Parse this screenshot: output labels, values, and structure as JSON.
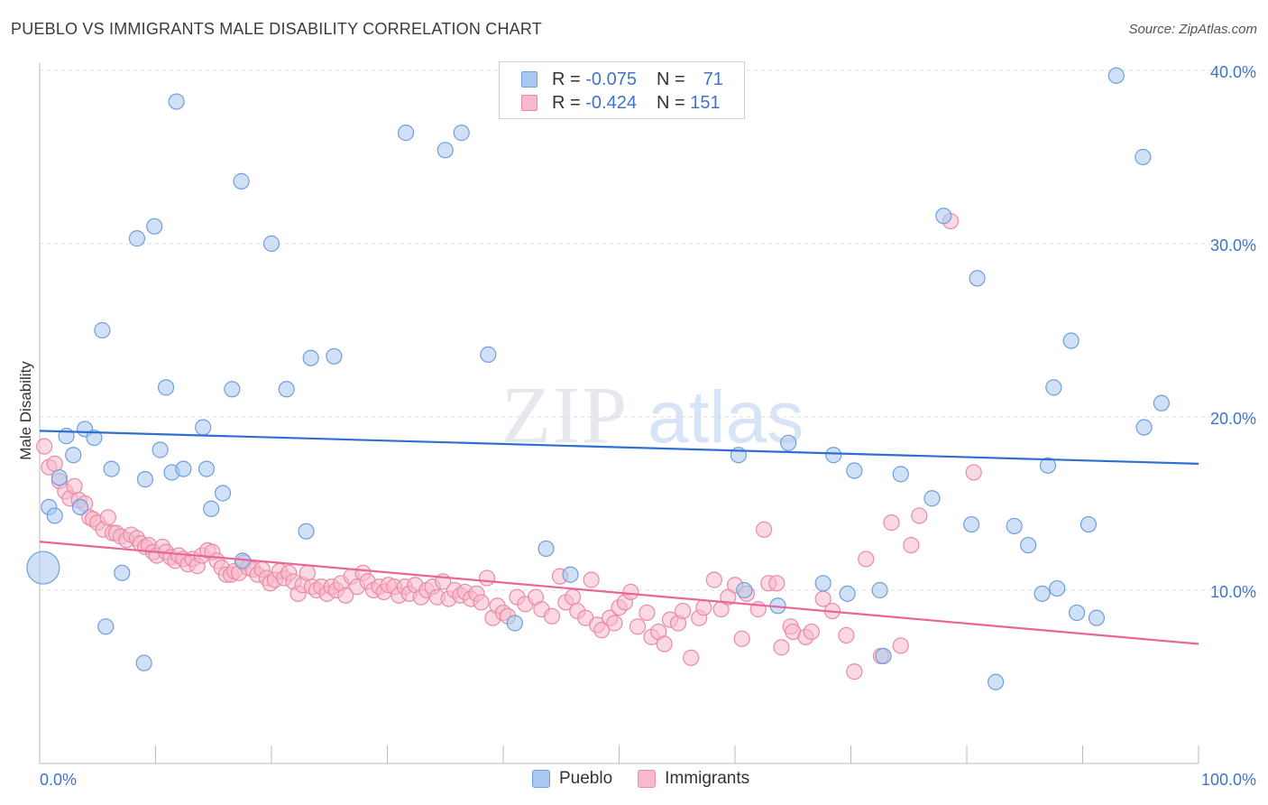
{
  "title": "PUEBLO VS IMMIGRANTS MALE DISABILITY CORRELATION CHART",
  "source": "Source: ZipAtlas.com",
  "watermark": {
    "zip": "ZIP",
    "atlas": "atlas"
  },
  "legend": {
    "rows": [
      {
        "r_label": "R =",
        "r_value": "-0.075",
        "n_label": "N =",
        "n_value": "71"
      },
      {
        "r_label": "R =",
        "r_value": "-0.424",
        "n_label": "N =",
        "n_value": "151"
      }
    ]
  },
  "bottom_legend": {
    "pueblo": "Pueblo",
    "immigrants": "Immigrants"
  },
  "colors": {
    "pueblo_fill": "#a9c8f0",
    "pueblo_stroke": "#6f9fdc",
    "pueblo_line": "#2f6fd0",
    "immigrants_fill": "#f7b9cb",
    "immigrants_stroke": "#ea8aa8",
    "immigrants_line": "#e8659a",
    "tick_text": "#3f74c9",
    "grid": "#dddddd"
  },
  "chart_data": {
    "type": "scatter",
    "title": "PUEBLO VS IMMIGRANTS MALE DISABILITY CORRELATION CHART",
    "xlabel": "",
    "ylabel": "Male Disability",
    "xlim": [
      0,
      100
    ],
    "ylim": [
      0,
      40
    ],
    "x_tick_labels": [
      "0.0%",
      "100.0%"
    ],
    "y_ticks": [
      10,
      20,
      30,
      40
    ],
    "y_tick_labels": [
      "10.0%",
      "20.0%",
      "30.0%",
      "40.0%"
    ],
    "grid": true,
    "legend_position": "top-center",
    "series": [
      {
        "name": "Pueblo",
        "r": -0.075,
        "n": 71,
        "trend": {
          "x": [
            0,
            100
          ],
          "y": [
            19.2,
            17.3
          ]
        },
        "points": [
          [
            0.3,
            11.3,
            "big"
          ],
          [
            0.8,
            14.8
          ],
          [
            1.3,
            14.3
          ],
          [
            1.7,
            16.5
          ],
          [
            2.3,
            18.9
          ],
          [
            2.9,
            17.8
          ],
          [
            3.5,
            14.8
          ],
          [
            3.9,
            19.3
          ],
          [
            4.7,
            18.8
          ],
          [
            5.4,
            25.0
          ],
          [
            6.2,
            17.0
          ],
          [
            7.1,
            11.0
          ],
          [
            5.7,
            7.9
          ],
          [
            8.4,
            30.3
          ],
          [
            9.1,
            16.4
          ],
          [
            9.0,
            5.8
          ],
          [
            9.9,
            31.0
          ],
          [
            10.4,
            18.1
          ],
          [
            10.9,
            21.7
          ],
          [
            11.4,
            16.8
          ],
          [
            11.8,
            38.2
          ],
          [
            12.4,
            17.0
          ],
          [
            14.1,
            19.4
          ],
          [
            14.4,
            17.0
          ],
          [
            14.8,
            14.7
          ],
          [
            15.8,
            15.6
          ],
          [
            16.6,
            21.6
          ],
          [
            17.4,
            33.6
          ],
          [
            17.5,
            11.7
          ],
          [
            20.0,
            30.0
          ],
          [
            21.3,
            21.6
          ],
          [
            23.0,
            13.4
          ],
          [
            23.4,
            23.4
          ],
          [
            25.4,
            23.5
          ],
          [
            31.6,
            36.4
          ],
          [
            35.0,
            35.4
          ],
          [
            36.4,
            36.4
          ],
          [
            38.7,
            23.6
          ],
          [
            43.7,
            12.4
          ],
          [
            45.8,
            10.9
          ],
          [
            41.0,
            8.1
          ],
          [
            60.3,
            17.8
          ],
          [
            60.8,
            10.0
          ],
          [
            63.7,
            9.1
          ],
          [
            64.6,
            18.5
          ],
          [
            67.6,
            10.4
          ],
          [
            68.5,
            17.8
          ],
          [
            69.7,
            9.8
          ],
          [
            70.3,
            16.9
          ],
          [
            72.5,
            10.0
          ],
          [
            72.8,
            6.2
          ],
          [
            74.3,
            16.7
          ],
          [
            77.0,
            15.3
          ],
          [
            78.0,
            31.6
          ],
          [
            80.4,
            13.8
          ],
          [
            80.9,
            28.0
          ],
          [
            84.1,
            13.7
          ],
          [
            85.3,
            12.6
          ],
          [
            87.0,
            17.2
          ],
          [
            87.8,
            10.1
          ],
          [
            87.5,
            21.7
          ],
          [
            89.0,
            24.4
          ],
          [
            89.5,
            8.7
          ],
          [
            90.5,
            13.8
          ],
          [
            91.2,
            8.4
          ],
          [
            92.9,
            39.7
          ],
          [
            95.2,
            35.0
          ],
          [
            95.3,
            19.4
          ],
          [
            96.8,
            20.8
          ],
          [
            82.5,
            4.7
          ],
          [
            86.5,
            9.8
          ]
        ]
      },
      {
        "name": "Immigrants",
        "r": -0.424,
        "n": 151,
        "trend": {
          "x": [
            0,
            100
          ],
          "y": [
            12.8,
            6.9
          ]
        },
        "points": [
          [
            0.4,
            18.3
          ],
          [
            0.8,
            17.1
          ],
          [
            1.3,
            17.3
          ],
          [
            1.7,
            16.3
          ],
          [
            2.2,
            15.7
          ],
          [
            2.6,
            15.3
          ],
          [
            3.0,
            16.0
          ],
          [
            3.4,
            15.2
          ],
          [
            3.9,
            15.0
          ],
          [
            4.3,
            14.2
          ],
          [
            4.6,
            14.1
          ],
          [
            5.0,
            13.9
          ],
          [
            5.5,
            13.5
          ],
          [
            5.9,
            14.2
          ],
          [
            6.3,
            13.3
          ],
          [
            6.6,
            13.3
          ],
          [
            7.0,
            13.1
          ],
          [
            7.5,
            12.9
          ],
          [
            7.9,
            13.2
          ],
          [
            8.4,
            13.0
          ],
          [
            8.7,
            12.7
          ],
          [
            9.1,
            12.5
          ],
          [
            9.4,
            12.6
          ],
          [
            9.8,
            12.2
          ],
          [
            10.1,
            12.0
          ],
          [
            10.6,
            12.5
          ],
          [
            10.9,
            12.2
          ],
          [
            11.3,
            11.9
          ],
          [
            11.7,
            11.7
          ],
          [
            12.0,
            12.0
          ],
          [
            12.4,
            11.8
          ],
          [
            12.8,
            11.5
          ],
          [
            13.2,
            11.8
          ],
          [
            13.6,
            11.4
          ],
          [
            14.0,
            12.0
          ],
          [
            14.5,
            12.3
          ],
          [
            14.9,
            12.2
          ],
          [
            15.3,
            11.7
          ],
          [
            15.7,
            11.3
          ],
          [
            16.1,
            10.9
          ],
          [
            16.5,
            10.9
          ],
          [
            16.8,
            11.1
          ],
          [
            17.2,
            11.0
          ],
          [
            17.6,
            11.6
          ],
          [
            18.0,
            11.3
          ],
          [
            18.4,
            11.2
          ],
          [
            18.8,
            10.9
          ],
          [
            19.2,
            11.2
          ],
          [
            19.6,
            10.7
          ],
          [
            19.9,
            10.4
          ],
          [
            20.3,
            10.6
          ],
          [
            20.7,
            11.1
          ],
          [
            21.1,
            10.7
          ],
          [
            21.5,
            11.0
          ],
          [
            21.9,
            10.5
          ],
          [
            22.3,
            9.8
          ],
          [
            22.7,
            10.3
          ],
          [
            23.1,
            11.0
          ],
          [
            23.5,
            10.2
          ],
          [
            23.9,
            10.0
          ],
          [
            24.3,
            10.2
          ],
          [
            24.8,
            9.8
          ],
          [
            25.2,
            10.2
          ],
          [
            25.6,
            10.0
          ],
          [
            26.0,
            10.4
          ],
          [
            26.4,
            9.7
          ],
          [
            26.9,
            10.8
          ],
          [
            27.4,
            10.2
          ],
          [
            27.9,
            11.0
          ],
          [
            28.3,
            10.5
          ],
          [
            28.8,
            10.0
          ],
          [
            29.3,
            10.2
          ],
          [
            29.7,
            9.9
          ],
          [
            30.1,
            10.3
          ],
          [
            30.6,
            10.2
          ],
          [
            31.0,
            9.7
          ],
          [
            31.5,
            10.2
          ],
          [
            31.9,
            9.8
          ],
          [
            32.4,
            10.3
          ],
          [
            32.9,
            9.6
          ],
          [
            33.4,
            10.0
          ],
          [
            33.9,
            10.2
          ],
          [
            34.3,
            9.6
          ],
          [
            34.8,
            10.5
          ],
          [
            35.3,
            9.5
          ],
          [
            35.8,
            10.0
          ],
          [
            36.3,
            9.7
          ],
          [
            36.7,
            9.9
          ],
          [
            37.2,
            9.5
          ],
          [
            37.7,
            9.8
          ],
          [
            38.1,
            9.3
          ],
          [
            38.6,
            10.7
          ],
          [
            39.1,
            8.4
          ],
          [
            39.5,
            9.1
          ],
          [
            40.0,
            8.7
          ],
          [
            40.4,
            8.5
          ],
          [
            41.2,
            9.6
          ],
          [
            41.9,
            9.2
          ],
          [
            42.8,
            9.6
          ],
          [
            43.3,
            8.9
          ],
          [
            44.2,
            8.5
          ],
          [
            44.9,
            10.8
          ],
          [
            45.4,
            9.3
          ],
          [
            46.0,
            9.6
          ],
          [
            46.4,
            8.8
          ],
          [
            47.1,
            8.4
          ],
          [
            47.6,
            10.6
          ],
          [
            48.1,
            8.0
          ],
          [
            48.5,
            7.7
          ],
          [
            49.2,
            8.4
          ],
          [
            49.6,
            8.1
          ],
          [
            50.0,
            9.0
          ],
          [
            50.5,
            9.3
          ],
          [
            51.0,
            9.9
          ],
          [
            51.6,
            7.9
          ],
          [
            52.4,
            8.7
          ],
          [
            52.8,
            7.3
          ],
          [
            53.4,
            7.6
          ],
          [
            53.9,
            6.9
          ],
          [
            54.4,
            8.3
          ],
          [
            55.1,
            8.1
          ],
          [
            55.5,
            8.8
          ],
          [
            56.2,
            6.1
          ],
          [
            56.9,
            8.4
          ],
          [
            57.3,
            9.0
          ],
          [
            58.2,
            10.6
          ],
          [
            58.8,
            8.9
          ],
          [
            59.4,
            9.6
          ],
          [
            60.0,
            10.3
          ],
          [
            60.6,
            7.2
          ],
          [
            61.0,
            9.8
          ],
          [
            62.0,
            8.9
          ],
          [
            62.5,
            13.5
          ],
          [
            62.9,
            10.4
          ],
          [
            63.6,
            10.4
          ],
          [
            64.0,
            6.7
          ],
          [
            64.8,
            7.9
          ],
          [
            65.0,
            7.6
          ],
          [
            66.1,
            7.3
          ],
          [
            66.6,
            7.6
          ],
          [
            67.6,
            9.5
          ],
          [
            68.4,
            8.8
          ],
          [
            69.6,
            7.4
          ],
          [
            70.3,
            5.3
          ],
          [
            71.3,
            11.8
          ],
          [
            72.6,
            6.2
          ],
          [
            73.5,
            13.9
          ],
          [
            74.3,
            6.8
          ],
          [
            75.2,
            12.6
          ],
          [
            75.9,
            14.3
          ],
          [
            78.6,
            31.3
          ],
          [
            80.6,
            16.8
          ]
        ]
      }
    ]
  }
}
